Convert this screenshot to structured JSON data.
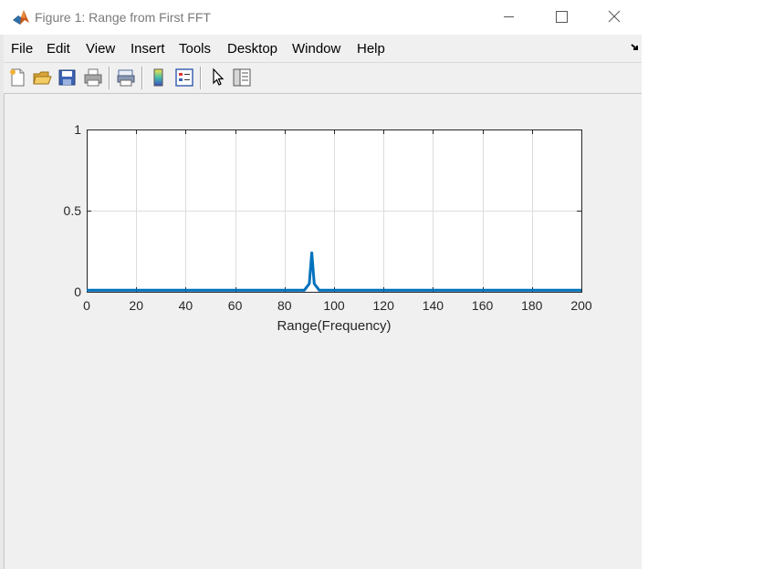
{
  "window": {
    "title": "Figure 1: Range from First FFT"
  },
  "menu": {
    "items": [
      "File",
      "Edit",
      "View",
      "Insert",
      "Tools",
      "Desktop",
      "Window",
      "Help"
    ]
  },
  "toolbar": {
    "tools": [
      "new-figure-icon",
      "open-file-icon",
      "save-icon",
      "print-icon",
      "print-preview-icon",
      "colorbar-icon",
      "legend-icon",
      "pointer-icon",
      "property-inspector-icon"
    ]
  },
  "colors": {
    "line": "#0072bd",
    "grid": "#dcdcdc",
    "window_bg": "#f0f0f0"
  },
  "chart_data": {
    "type": "line",
    "title": "",
    "xlabel": "Range(Frequency)",
    "ylabel": "",
    "xlim": [
      0,
      200
    ],
    "ylim": [
      0,
      1
    ],
    "xticks": [
      0,
      20,
      40,
      60,
      80,
      100,
      120,
      140,
      160,
      180,
      200
    ],
    "yticks": [
      0,
      0.5,
      1
    ],
    "xtick_labels": [
      "0",
      "20",
      "40",
      "60",
      "80",
      "100",
      "120",
      "140",
      "160",
      "180",
      "200"
    ],
    "ytick_labels": [
      "0",
      "0.5",
      "1"
    ],
    "grid": true,
    "series": [
      {
        "x": [
          0,
          10,
          20,
          30,
          40,
          50,
          60,
          70,
          80,
          88,
          90,
          91,
          92,
          94,
          100,
          110,
          120,
          130,
          140,
          150,
          160,
          170,
          180,
          190,
          200
        ],
        "y": [
          0.01,
          0.01,
          0.01,
          0.01,
          0.01,
          0.01,
          0.01,
          0.01,
          0.01,
          0.01,
          0.05,
          0.24,
          0.05,
          0.01,
          0.01,
          0.01,
          0.01,
          0.01,
          0.01,
          0.01,
          0.01,
          0.01,
          0.01,
          0.01,
          0.01
        ]
      }
    ]
  }
}
